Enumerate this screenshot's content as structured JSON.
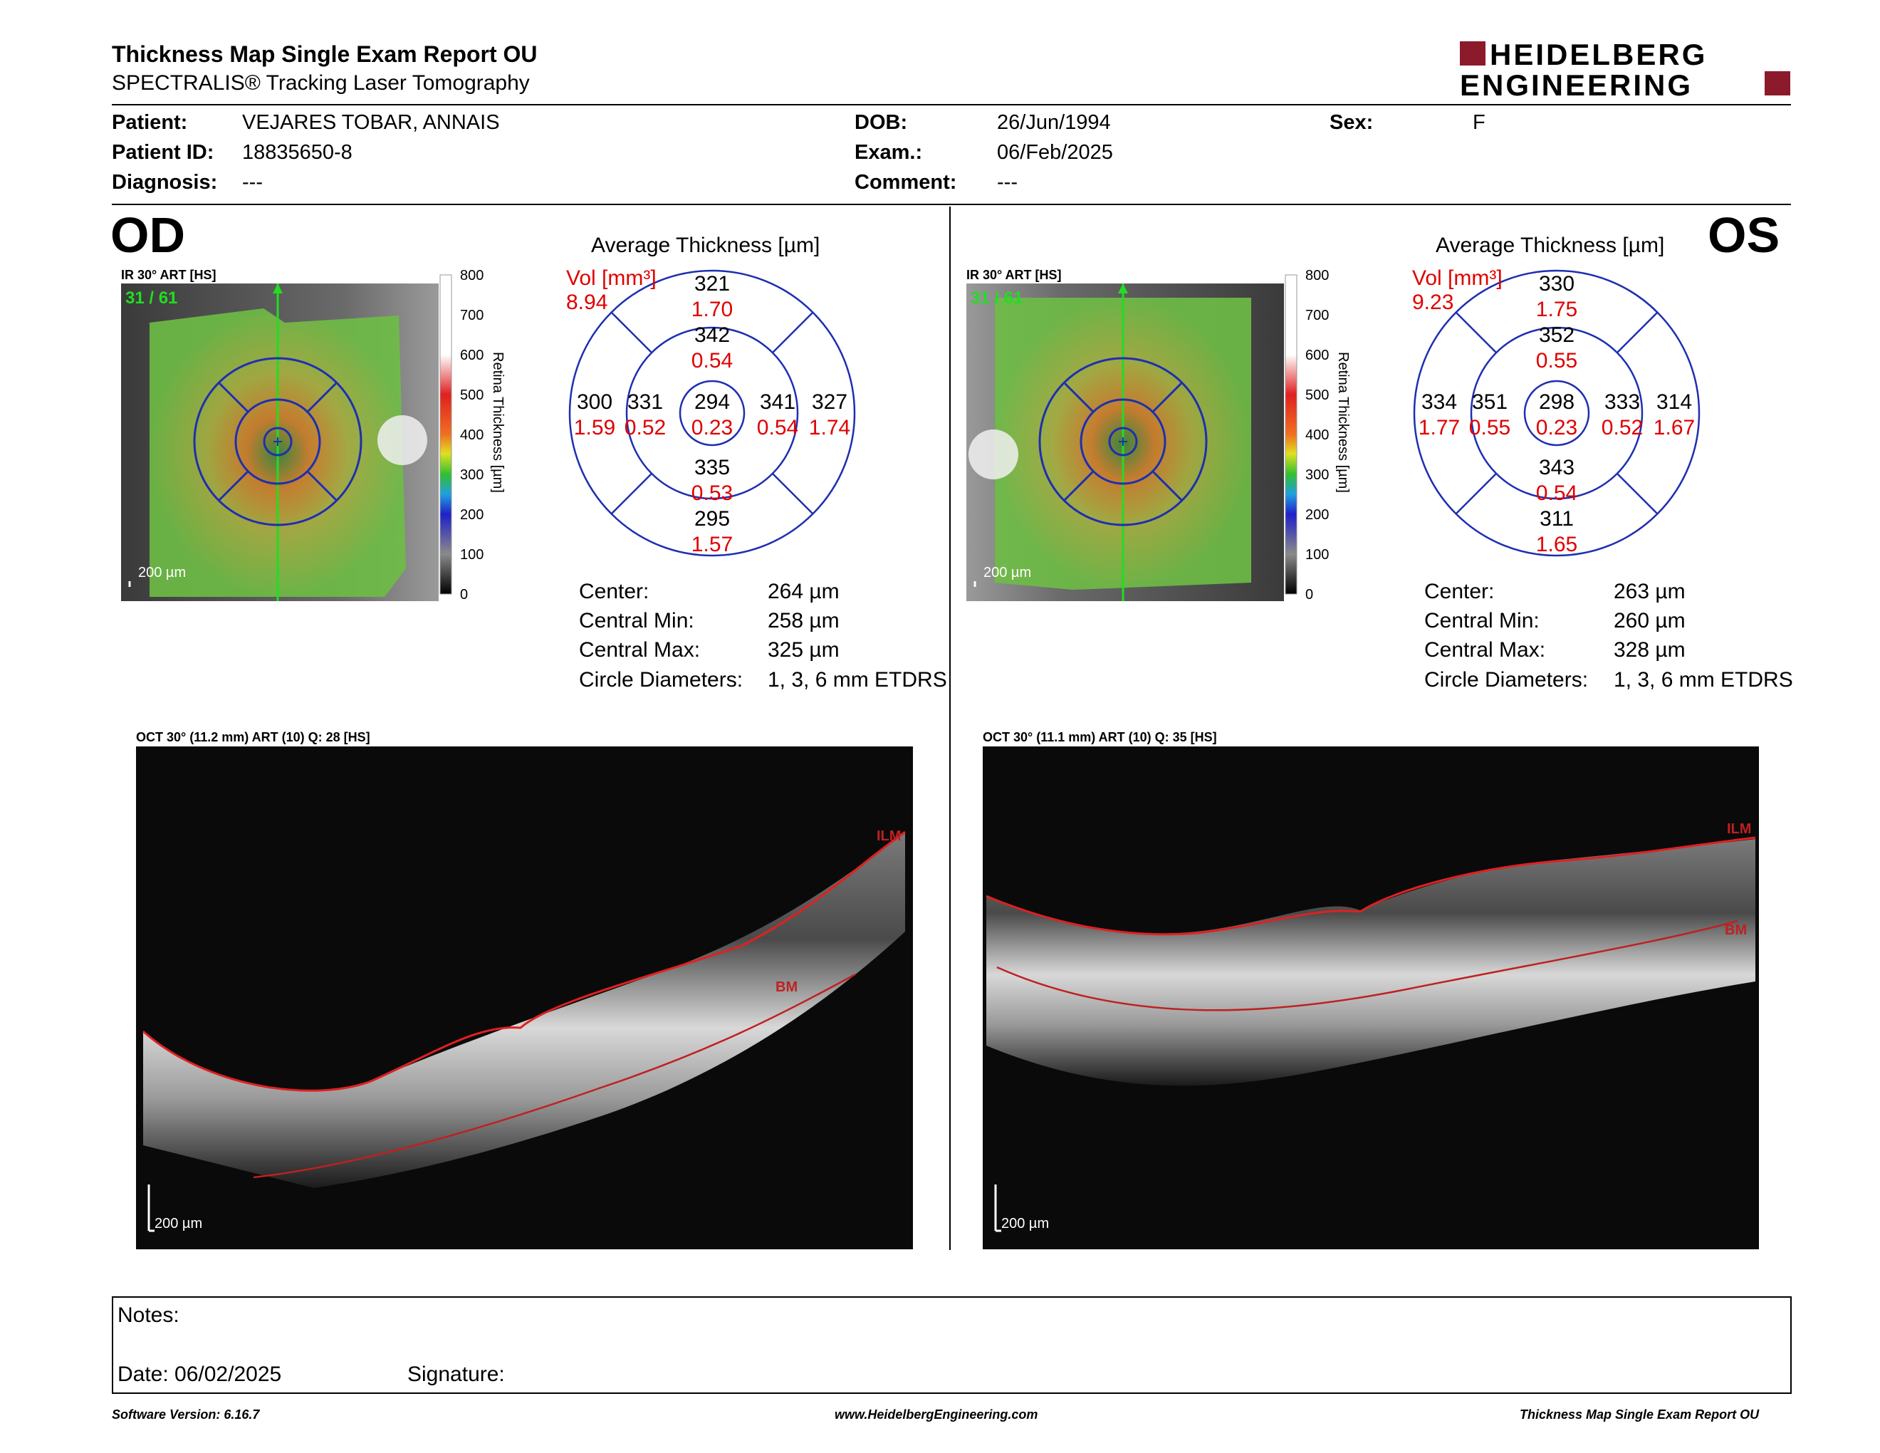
{
  "header": {
    "title": "Thickness Map Single Exam Report OU",
    "subtitle": "SPECTRALIS® Tracking Laser Tomography",
    "logo_line1": "HEIDELBERG",
    "logo_line2": "ENGINEERING",
    "brand_color": "#8b1a2b"
  },
  "patient": {
    "patient_label": "Patient:",
    "patient_value": "VEJARES TOBAR, ANNAIS",
    "id_label": "Patient ID:",
    "id_value": "18835650-8",
    "diagnosis_label": "Diagnosis:",
    "diagnosis_value": "---",
    "dob_label": "DOB:",
    "dob_value": "26/Jun/1994",
    "exam_label": "Exam.:",
    "exam_value": "06/Feb/2025",
    "comment_label": "Comment:",
    "comment_value": "---",
    "sex_label": "Sex:",
    "sex_value": "F"
  },
  "od": {
    "eye_label": "OD",
    "ir_label": "IR 30° ART [HS]",
    "scan_counter": "31 / 61",
    "scale_label": "200 µm",
    "avg_title": "Average Thickness [µm]",
    "vol_label": "Vol [mm³]",
    "vol_value": "8.94",
    "sectors": {
      "outer_sup": {
        "t": "321",
        "v": "1.70"
      },
      "inner_sup": {
        "t": "342",
        "v": "0.54"
      },
      "outer_temp": {
        "t": "300",
        "v": "1.59"
      },
      "inner_temp": {
        "t": "331",
        "v": "0.52"
      },
      "center": {
        "t": "294",
        "v": "0.23"
      },
      "inner_nasal": {
        "t": "341",
        "v": "0.54"
      },
      "outer_nasal": {
        "t": "327",
        "v": "1.74"
      },
      "inner_inf": {
        "t": "335",
        "v": "0.53"
      },
      "outer_inf": {
        "t": "295",
        "v": "1.57"
      }
    },
    "stats": {
      "center_label": "Center:",
      "center_value": "264 µm",
      "min_label": "Central Min:",
      "min_value": "258 µm",
      "max_label": "Central Max:",
      "max_value": "325 µm",
      "diam_label": "Circle Diameters:",
      "diam_value": "1, 3, 6 mm ETDRS"
    },
    "oct_label": "OCT 30° (11.2 mm) ART (10) Q: 28 [HS]",
    "oct_scale": "200 µm",
    "ilm_label": "ILM",
    "bm_label": "BM"
  },
  "os": {
    "eye_label": "OS",
    "ir_label": "IR 30° ART [HS]",
    "scan_counter": "31 / 61",
    "scale_label": "200 µm",
    "avg_title": "Average Thickness [µm]",
    "vol_label": "Vol [mm³]",
    "vol_value": "9.23",
    "sectors": {
      "outer_sup": {
        "t": "330",
        "v": "1.75"
      },
      "inner_sup": {
        "t": "352",
        "v": "0.55"
      },
      "outer_temp": {
        "t": "334",
        "v": "1.77"
      },
      "inner_temp": {
        "t": "351",
        "v": "0.55"
      },
      "center": {
        "t": "298",
        "v": "0.23"
      },
      "inner_nasal": {
        "t": "333",
        "v": "0.52"
      },
      "outer_nasal": {
        "t": "314",
        "v": "1.67"
      },
      "inner_inf": {
        "t": "343",
        "v": "0.54"
      },
      "outer_inf": {
        "t": "311",
        "v": "1.65"
      }
    },
    "stats": {
      "center_label": "Center:",
      "center_value": "263 µm",
      "min_label": "Central Min:",
      "min_value": "260 µm",
      "max_label": "Central Max:",
      "max_value": "328 µm",
      "diam_label": "Circle Diameters:",
      "diam_value": "1, 3, 6 mm ETDRS"
    },
    "oct_label": "OCT 30° (11.1 mm) ART (10) Q: 35 [HS]",
    "oct_scale": "200 µm",
    "ilm_label": "ILM",
    "bm_label": "BM"
  },
  "colorbar": {
    "ticks": [
      "800",
      "700",
      "600",
      "500",
      "400",
      "300",
      "200",
      "100",
      "0"
    ],
    "axis_label": "Retina Thickness [µm]"
  },
  "notes": {
    "notes_label": "Notes:",
    "date_label": "Date: 06/02/2025",
    "signature_label": "Signature:"
  },
  "footer": {
    "software": "Software Version: 6.16.7",
    "website": "www.HeidelbergEngineering.com",
    "report_name": "Thickness Map Single Exam Report OU"
  }
}
